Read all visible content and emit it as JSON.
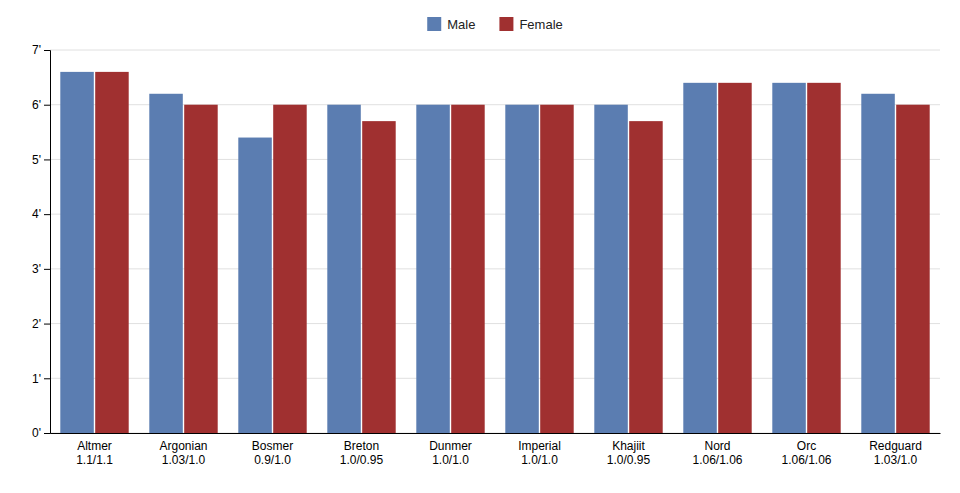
{
  "chart_data": {
    "type": "bar",
    "categories": [
      "Altmer\n1.1/1.1",
      "Argonian\n1.03/1.0",
      "Bosmer\n0.9/1.0",
      "Breton\n1.0/0.95",
      "Dunmer\n1.0/1.0",
      "Imperial\n1.0/1.0",
      "Khajiit\n1.0/0.95",
      "Nord\n1.06/1.06",
      "Orc\n1.06/1.06",
      "Redguard\n1.03/1.0"
    ],
    "series": [
      {
        "name": "Male",
        "color": "#5b7db1",
        "values": [
          6.6,
          6.2,
          5.4,
          6.0,
          6.0,
          6.0,
          6.0,
          6.4,
          6.4,
          6.2
        ]
      },
      {
        "name": "Female",
        "color": "#a03030",
        "values": [
          6.6,
          6.0,
          6.0,
          5.7,
          6.0,
          6.0,
          5.7,
          6.4,
          6.4,
          6.0
        ]
      }
    ],
    "ylim": [
      0,
      7
    ],
    "yticks": [
      {
        "value": 0,
        "label": "0'"
      },
      {
        "value": 1,
        "label": "1'"
      },
      {
        "value": 2,
        "label": "2'"
      },
      {
        "value": 3,
        "label": "3'"
      },
      {
        "value": 4,
        "label": "4'"
      },
      {
        "value": 5,
        "label": "5'"
      },
      {
        "value": 6,
        "label": "6'"
      },
      {
        "value": 7,
        "label": "7'"
      }
    ],
    "grid": true,
    "legend": "top"
  }
}
